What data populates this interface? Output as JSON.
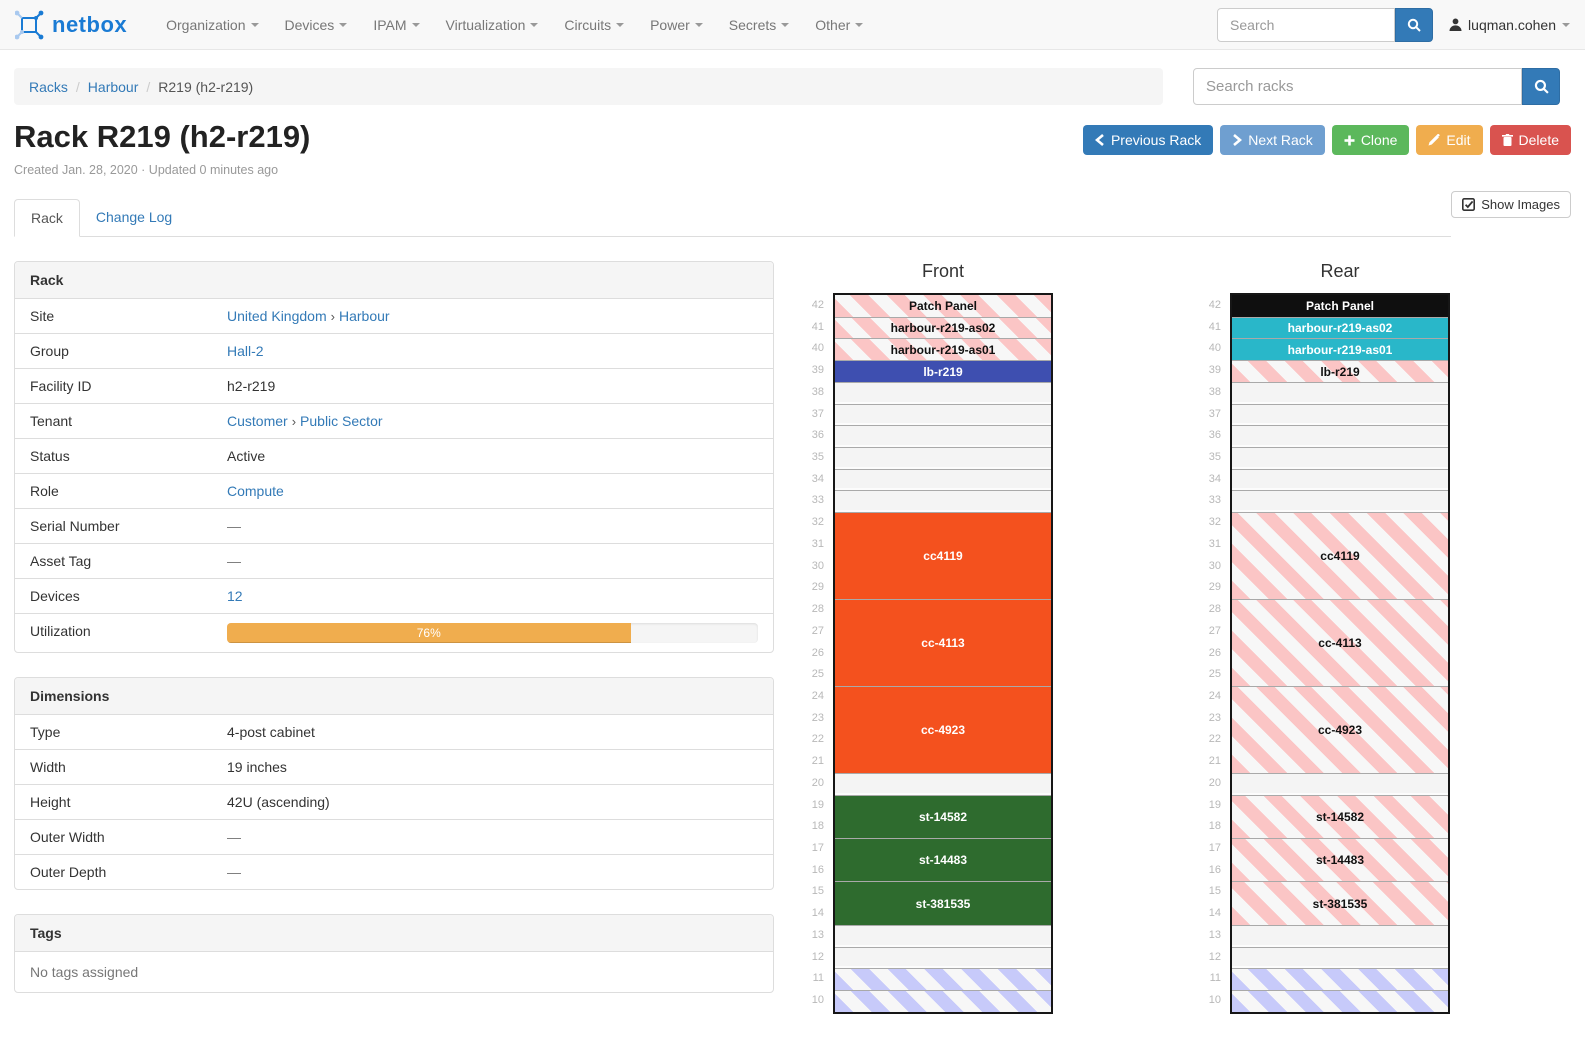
{
  "navbar": {
    "brand": "netbox",
    "items": [
      {
        "label": "Organization"
      },
      {
        "label": "Devices"
      },
      {
        "label": "IPAM"
      },
      {
        "label": "Virtualization"
      },
      {
        "label": "Circuits"
      },
      {
        "label": "Power"
      },
      {
        "label": "Secrets"
      },
      {
        "label": "Other"
      }
    ],
    "search_placeholder": "Search",
    "user": "luqman.cohen"
  },
  "breadcrumb": {
    "separator": "/",
    "items": [
      {
        "label": "Racks",
        "link": true
      },
      {
        "label": "Harbour",
        "link": true
      },
      {
        "label": "R219 (h2-r219)",
        "link": false
      }
    ]
  },
  "rack_search": {
    "placeholder": "Search racks"
  },
  "actions": {
    "previous": "Previous Rack",
    "next": "Next Rack",
    "clone": "Clone",
    "edit": "Edit",
    "delete": "Delete"
  },
  "page": {
    "title": "Rack R219 (h2-r219)",
    "meta": "Created Jan. 28, 2020 · Updated 0 minutes ago"
  },
  "tabs": [
    {
      "label": "Rack",
      "active": true
    },
    {
      "label": "Change Log",
      "active": false
    }
  ],
  "show_images_label": "Show Images",
  "value_separator": "›",
  "panels": {
    "rack": {
      "title": "Rack",
      "rows": [
        {
          "label": "Site",
          "type": "links",
          "parts": [
            "United Kingdom",
            "Harbour"
          ]
        },
        {
          "label": "Group",
          "type": "link",
          "value": "Hall-2"
        },
        {
          "label": "Facility ID",
          "type": "text",
          "value": "h2-r219"
        },
        {
          "label": "Tenant",
          "type": "links",
          "parts": [
            "Customer",
            "Public Sector"
          ]
        },
        {
          "label": "Status",
          "type": "text",
          "value": "Active"
        },
        {
          "label": "Role",
          "type": "link",
          "value": "Compute"
        },
        {
          "label": "Serial Number",
          "type": "dash",
          "value": "—"
        },
        {
          "label": "Asset Tag",
          "type": "dash",
          "value": "—"
        },
        {
          "label": "Devices",
          "type": "link",
          "value": "12"
        },
        {
          "label": "Utilization",
          "type": "progress",
          "percent": 76,
          "text": "76%"
        }
      ]
    },
    "dimensions": {
      "title": "Dimensions",
      "rows": [
        {
          "label": "Type",
          "type": "text",
          "value": "4-post cabinet"
        },
        {
          "label": "Width",
          "type": "text",
          "value": "19 inches"
        },
        {
          "label": "Height",
          "type": "text",
          "value": "42U (ascending)"
        },
        {
          "label": "Outer Width",
          "type": "dash",
          "value": "—"
        },
        {
          "label": "Outer Depth",
          "type": "dash",
          "value": "—"
        }
      ]
    },
    "tags": {
      "title": "Tags",
      "body": "No tags assigned"
    }
  },
  "colors": {
    "accent": "#337ab7",
    "utilization_bar": "#f0ad4e",
    "device_orange": "#f4511e",
    "device_green": "#2e6b2e",
    "device_indigo": "#3e4fb0",
    "device_cyan": "#29b7c9",
    "device_black": "#0f0f0f"
  },
  "elevations": {
    "front": {
      "title": "Front",
      "top_unit": 42,
      "bottom_visible_unit": 10,
      "slots": [
        {
          "label": "Patch Panel",
          "u": 1,
          "style": "striped-pink"
        },
        {
          "label": "harbour-r219-as02",
          "u": 1,
          "style": "striped-pink"
        },
        {
          "label": "harbour-r219-as01",
          "u": 1,
          "style": "striped-pink"
        },
        {
          "label": "lb-r219",
          "u": 1,
          "style": "solid",
          "color": "#3e4fb0"
        },
        {
          "u": 1,
          "style": "empty"
        },
        {
          "u": 1,
          "style": "empty"
        },
        {
          "u": 1,
          "style": "empty"
        },
        {
          "u": 1,
          "style": "empty"
        },
        {
          "u": 1,
          "style": "empty"
        },
        {
          "u": 1,
          "style": "empty"
        },
        {
          "label": "cc4119",
          "u": 4,
          "style": "solid",
          "color": "#f4511e"
        },
        {
          "label": "cc-4113",
          "u": 4,
          "style": "solid",
          "color": "#f4511e"
        },
        {
          "label": "cc-4923",
          "u": 4,
          "style": "solid",
          "color": "#f4511e"
        },
        {
          "u": 1,
          "style": "empty"
        },
        {
          "label": "st-14582",
          "u": 2,
          "style": "solid",
          "color": "#2e6b2e"
        },
        {
          "label": "st-14483",
          "u": 2,
          "style": "solid",
          "color": "#2e6b2e"
        },
        {
          "label": "st-381535",
          "u": 2,
          "style": "solid",
          "color": "#2e6b2e"
        },
        {
          "u": 1,
          "style": "empty"
        },
        {
          "u": 1,
          "style": "empty"
        },
        {
          "u": 1,
          "style": "striped-blue"
        },
        {
          "u": 1,
          "style": "striped-blue"
        }
      ]
    },
    "rear": {
      "title": "Rear",
      "top_unit": 42,
      "bottom_visible_unit": 10,
      "slots": [
        {
          "label": "Patch Panel",
          "u": 1,
          "style": "solid",
          "color": "#0f0f0f"
        },
        {
          "label": "harbour-r219-as02",
          "u": 1,
          "style": "solid",
          "color": "#29b7c9"
        },
        {
          "label": "harbour-r219-as01",
          "u": 1,
          "style": "solid",
          "color": "#29b7c9"
        },
        {
          "label": "lb-r219",
          "u": 1,
          "style": "striped-pink"
        },
        {
          "u": 1,
          "style": "empty"
        },
        {
          "u": 1,
          "style": "empty"
        },
        {
          "u": 1,
          "style": "empty"
        },
        {
          "u": 1,
          "style": "empty"
        },
        {
          "u": 1,
          "style": "empty"
        },
        {
          "u": 1,
          "style": "empty"
        },
        {
          "label": "cc4119",
          "u": 4,
          "style": "striped-pink"
        },
        {
          "label": "cc-4113",
          "u": 4,
          "style": "striped-pink"
        },
        {
          "label": "cc-4923",
          "u": 4,
          "style": "striped-pink"
        },
        {
          "u": 1,
          "style": "empty"
        },
        {
          "label": "st-14582",
          "u": 2,
          "style": "striped-pink"
        },
        {
          "label": "st-14483",
          "u": 2,
          "style": "striped-pink"
        },
        {
          "label": "st-381535",
          "u": 2,
          "style": "striped-pink"
        },
        {
          "u": 1,
          "style": "empty"
        },
        {
          "u": 1,
          "style": "empty"
        },
        {
          "u": 1,
          "style": "striped-blue"
        },
        {
          "u": 1,
          "style": "striped-blue"
        }
      ]
    }
  }
}
